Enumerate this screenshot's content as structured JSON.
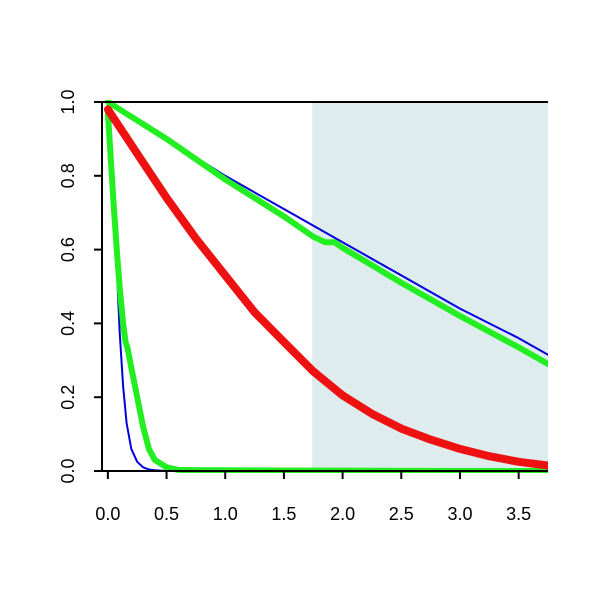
{
  "chart_data": {
    "type": "line",
    "title": "",
    "xlabel": "",
    "ylabel": "",
    "xlim": [
      -0.05,
      3.75
    ],
    "ylim": [
      0,
      1.0
    ],
    "x_ticks": [
      "0.0",
      "0.5",
      "1.0",
      "1.5",
      "2.0",
      "2.5",
      "3.0",
      "3.5"
    ],
    "y_ticks": [
      "0.0",
      "0.2",
      "0.4",
      "0.6",
      "0.8",
      "1.0"
    ],
    "grid": false,
    "legend": "none",
    "shaded_region": {
      "x_start": 1.74,
      "x_end": 3.75,
      "color": "#deeced"
    },
    "series": [
      {
        "color": "#0000dd",
        "width": 2,
        "x": [
          0.0,
          0.02,
          0.05,
          0.08,
          0.1,
          0.13,
          0.16,
          0.2,
          0.25,
          0.3,
          0.35,
          0.4,
          0.5,
          0.7,
          1.0,
          2.0,
          3.0,
          3.75
        ],
        "y": [
          0.99,
          0.9,
          0.72,
          0.52,
          0.38,
          0.23,
          0.13,
          0.06,
          0.025,
          0.01,
          0.004,
          0.002,
          0.0,
          0.0,
          0.0,
          0.0,
          0.0,
          0.0
        ]
      },
      {
        "color": "#0000dd",
        "width": 2,
        "x": [
          0.0,
          0.5,
          1.0,
          1.5,
          2.0,
          2.5,
          3.0,
          3.5,
          3.75
        ],
        "y": [
          1.0,
          0.9,
          0.8,
          0.71,
          0.62,
          0.53,
          0.44,
          0.36,
          0.315
        ]
      },
      {
        "color": "#22ee22",
        "width": 6,
        "x": [
          0.0,
          0.03,
          0.05,
          0.08,
          0.1,
          0.13,
          0.15,
          0.17,
          0.2,
          0.25,
          0.3,
          0.35,
          0.4,
          0.5,
          0.6,
          0.8,
          1.0,
          2.0,
          3.0,
          3.75
        ],
        "y": [
          0.97,
          0.82,
          0.72,
          0.58,
          0.5,
          0.4,
          0.35,
          0.33,
          0.28,
          0.2,
          0.12,
          0.06,
          0.03,
          0.01,
          0.003,
          0.002,
          0.002,
          0.001,
          0.0,
          0.0
        ]
      },
      {
        "color": "#22ee22",
        "width": 6,
        "x": [
          0.0,
          0.5,
          1.0,
          1.5,
          1.75,
          1.85,
          1.93,
          2.0,
          2.5,
          3.0,
          3.5,
          3.75
        ],
        "y": [
          1.0,
          0.9,
          0.79,
          0.69,
          0.635,
          0.62,
          0.62,
          0.605,
          0.51,
          0.42,
          0.335,
          0.29
        ]
      },
      {
        "color": "#ee1111",
        "width": 8,
        "x": [
          0.0,
          0.25,
          0.5,
          0.75,
          1.0,
          1.25,
          1.5,
          1.75,
          2.0,
          2.25,
          2.5,
          2.75,
          3.0,
          3.25,
          3.5,
          3.75
        ],
        "y": [
          0.98,
          0.86,
          0.74,
          0.63,
          0.53,
          0.43,
          0.35,
          0.27,
          0.205,
          0.155,
          0.115,
          0.085,
          0.06,
          0.04,
          0.025,
          0.015
        ]
      }
    ]
  }
}
